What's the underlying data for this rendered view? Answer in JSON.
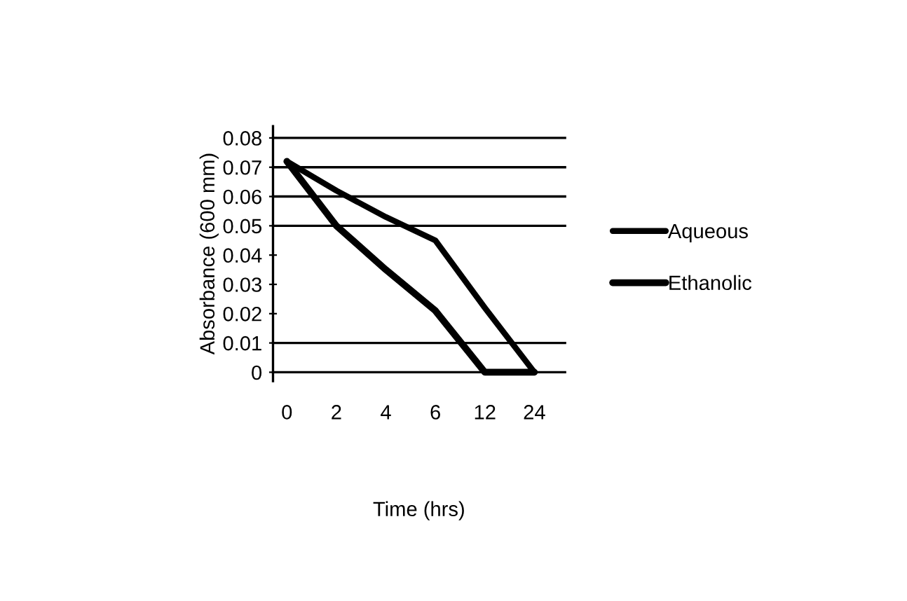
{
  "chart_data": {
    "type": "line",
    "xlabel": "Time (hrs)",
    "ylabel": "Absorbance (600 mm)",
    "categories": [
      "0",
      "2",
      "4",
      "6",
      "12",
      "24"
    ],
    "series": [
      {
        "name": "Aqueous",
        "color": "#000000",
        "values": [
          0.072,
          0.062,
          0.053,
          0.045,
          0.022,
          0
        ]
      },
      {
        "name": "Ethanolic",
        "color": "#000000",
        "values": [
          0.072,
          0.05,
          0.035,
          0.021,
          0,
          0
        ]
      }
    ],
    "ylim": [
      -0.003,
      0.084
    ],
    "yticks": [
      0.08,
      0.07,
      0.06,
      0.05,
      0.04,
      0.03,
      0.02,
      0.01,
      0
    ],
    "ref_lines": [
      {
        "axis": "y",
        "value": 0.08
      },
      {
        "axis": "y",
        "value": 0.07
      },
      {
        "axis": "y",
        "value": 0.06
      },
      {
        "axis": "y",
        "value": 0.05
      },
      {
        "axis": "y",
        "value": 0.01
      },
      {
        "axis": "y",
        "value": 0
      }
    ],
    "grid": false,
    "legend": "right",
    "marker": "none",
    "line_style": "solid"
  }
}
